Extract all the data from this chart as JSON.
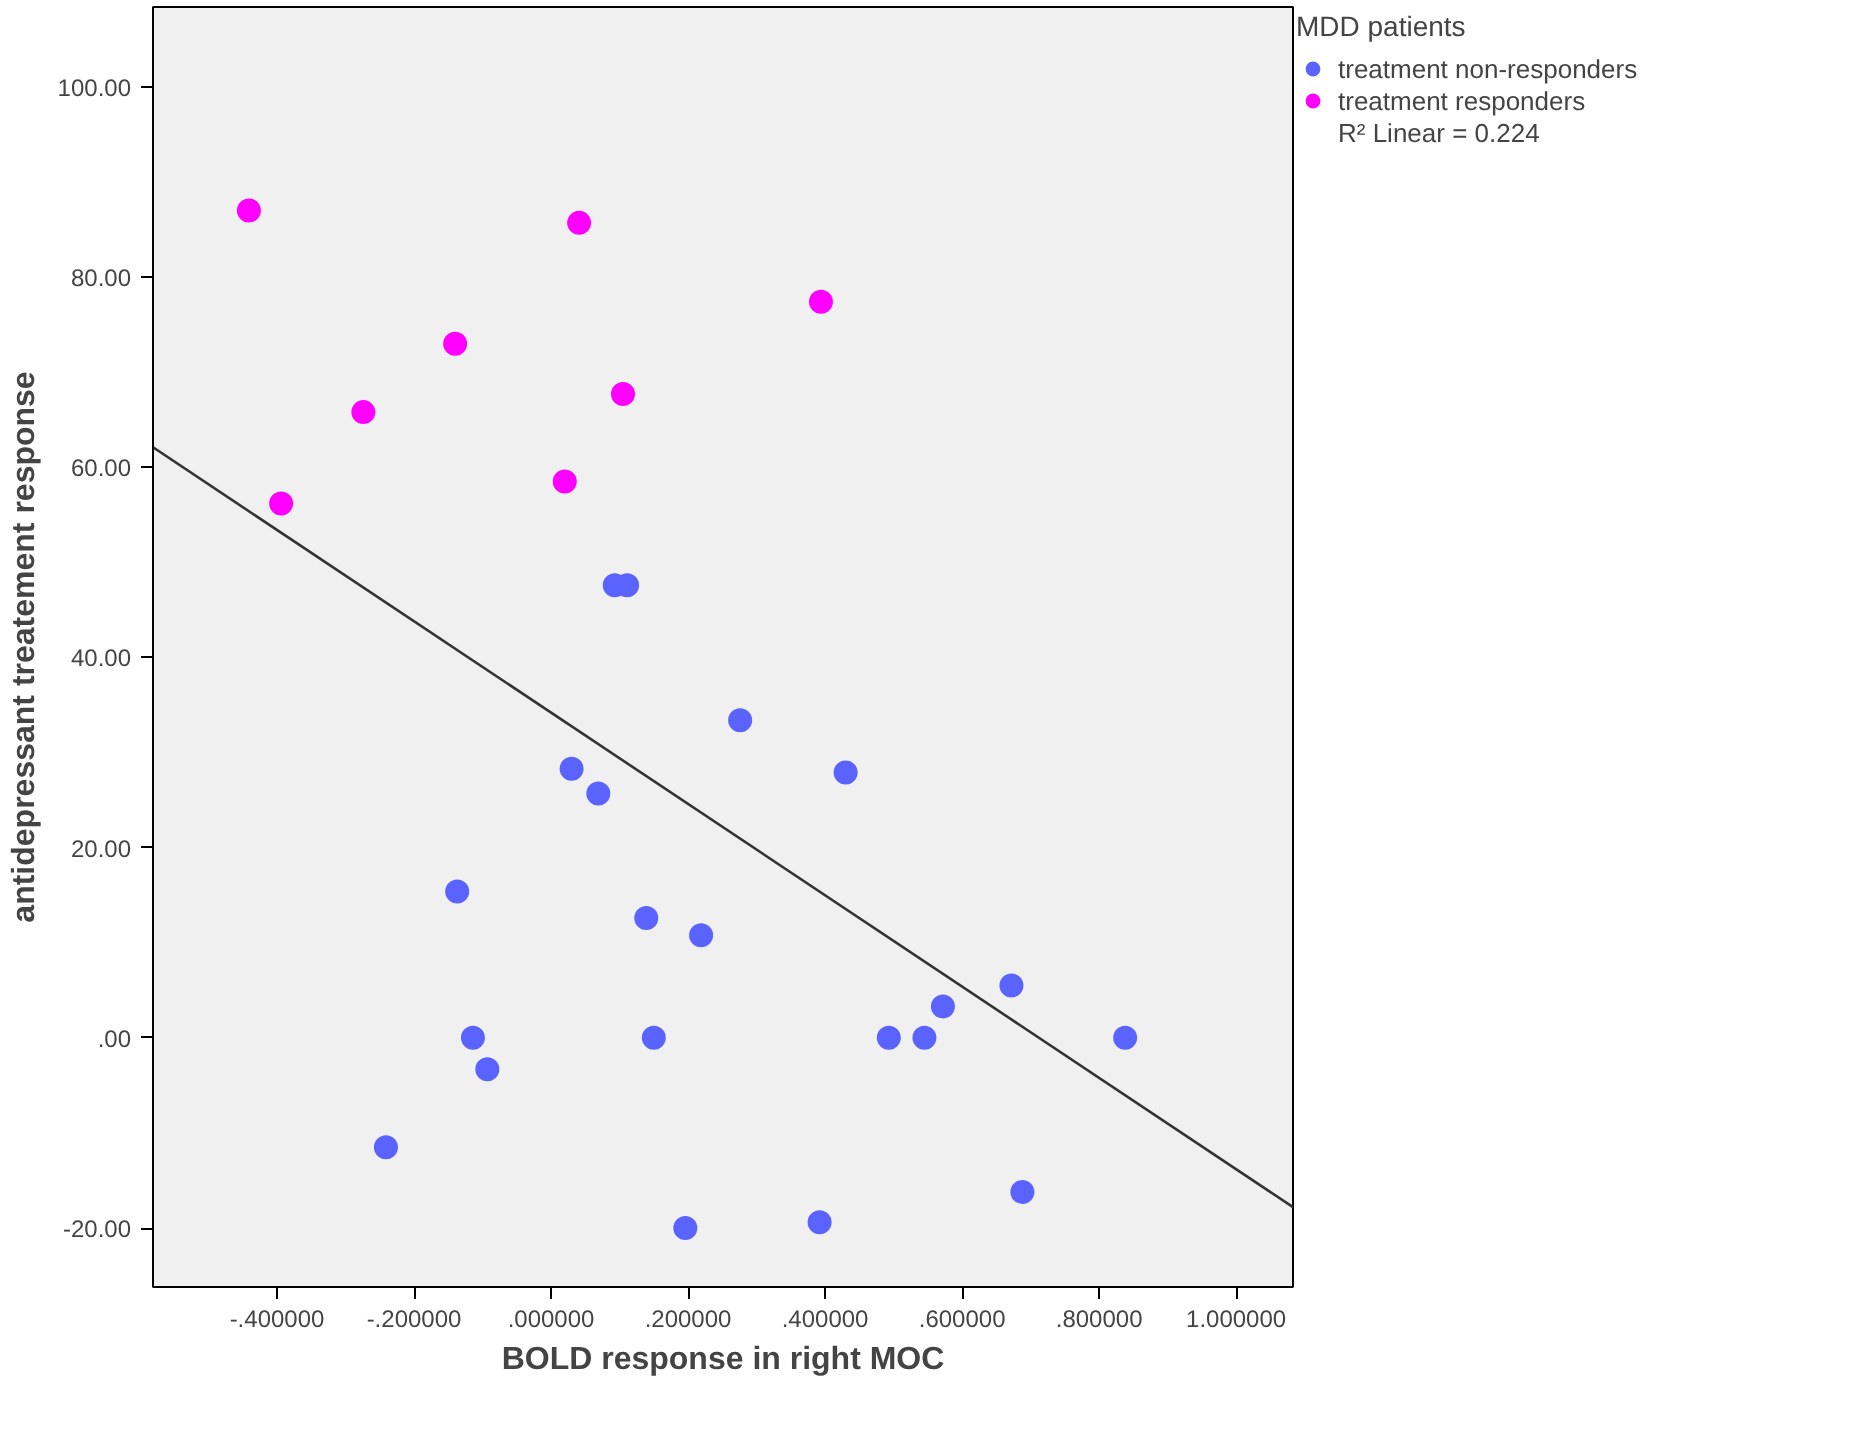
{
  "chart_data": {
    "type": "scatter",
    "xlabel": "BOLD response in right MOC",
    "ylabel": "antidepressant treatement response",
    "legend_title": "MDD patients",
    "legend": "right",
    "grid": false,
    "marker": "circle",
    "xlim": [
      -0.581,
      1.083
    ],
    "ylim": [
      -26.2,
      108.4
    ],
    "xticks": [
      {
        "value": -0.4,
        "label": "-.400000"
      },
      {
        "value": -0.2,
        "label": "-.200000"
      },
      {
        "value": 0,
        "label": ".000000"
      },
      {
        "value": 0.2,
        "label": ".200000"
      },
      {
        "value": 0.4,
        "label": ".400000"
      },
      {
        "value": 0.6,
        "label": ".600000"
      },
      {
        "value": 0.8,
        "label": ".800000"
      },
      {
        "value": 1.0,
        "label": "1.000000"
      }
    ],
    "yticks": [
      {
        "value": -20,
        "label": "-20.00"
      },
      {
        "value": 0,
        "label": ".00"
      },
      {
        "value": 20,
        "label": "20.00"
      },
      {
        "value": 40,
        "label": "40.00"
      },
      {
        "value": 60,
        "label": "60.00"
      },
      {
        "value": 80,
        "label": "80.00"
      },
      {
        "value": 100,
        "label": "100.00"
      }
    ],
    "annotations": [
      "R² Linear = 0.224"
    ],
    "series": [
      {
        "name": "treatment non-responders",
        "color": "#5b63fe",
        "x": [
          0.093,
          0.111,
          0.276,
          0.03,
          0.069,
          0.43,
          -0.137,
          0.139,
          0.219,
          0.672,
          0.572,
          -0.114,
          0.15,
          0.493,
          0.545,
          0.838,
          -0.093,
          -0.241,
          0.688,
          0.196,
          0.392
        ],
        "values": [
          47.6,
          47.6,
          33.4,
          28.3,
          25.7,
          27.9,
          15.4,
          12.6,
          10.8,
          5.5,
          3.3,
          0,
          0,
          0,
          0,
          0,
          -3.3,
          -11.5,
          -16.2,
          -20.0,
          -19.4
        ]
      },
      {
        "name": "treatment responders",
        "color": "#ff00ff",
        "x": [
          -0.441,
          0.041,
          0.394,
          -0.14,
          -0.274,
          0.105,
          -0.394,
          0.02
        ],
        "values": [
          87.0,
          85.7,
          77.4,
          73.0,
          65.8,
          67.7,
          56.2,
          58.5
        ]
      },
      {
        "type": "line",
        "color": "#333333",
        "x": [
          -0.581,
          1.083
        ],
        "values": [
          62.1,
          -17.8
        ],
        "marker": "none",
        "line_style": "solid"
      }
    ]
  }
}
